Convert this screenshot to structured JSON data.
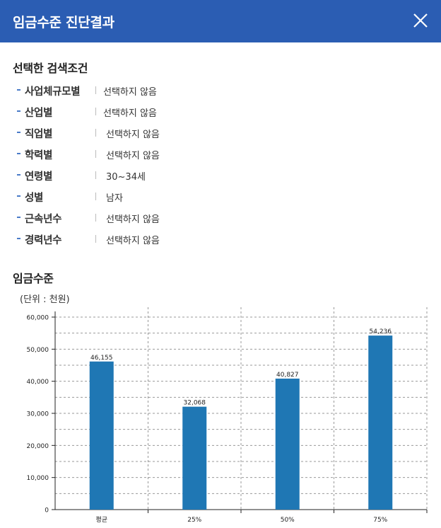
{
  "header": {
    "title": "임금수준 진단결과",
    "close_icon": "close-icon"
  },
  "conditions": {
    "title": "선택한 검색조건",
    "items": [
      {
        "label": "사업체규모별",
        "value": "선택하지 않음"
      },
      {
        "label": "산업별",
        "value": "선택하지 않음"
      },
      {
        "label": "직업별",
        "value": "선택하지 않음"
      },
      {
        "label": "학력별",
        "value": "선택하지 않음"
      },
      {
        "label": "연령별",
        "value": "30~34세"
      },
      {
        "label": "성별",
        "value": "남자"
      },
      {
        "label": "근속년수",
        "value": "선택하지 않음"
      },
      {
        "label": "경력년수",
        "value": "선택하지 않음"
      }
    ]
  },
  "wage": {
    "title": "임금수준",
    "unit": "(단위 : 천원)"
  },
  "chart_data": {
    "type": "bar",
    "categories": [
      "평균",
      "25%",
      "50%",
      "75%"
    ],
    "values": [
      46155,
      32068,
      40827,
      54236
    ],
    "value_labels": [
      "46,155",
      "32,068",
      "40,827",
      "54,236"
    ],
    "ylim": [
      0,
      60000
    ],
    "yticks": [
      "0",
      "10,000",
      "20,000",
      "30,000",
      "40,000",
      "50,000",
      "60,000"
    ],
    "grid": true,
    "bar_color": "#1f77b4"
  }
}
